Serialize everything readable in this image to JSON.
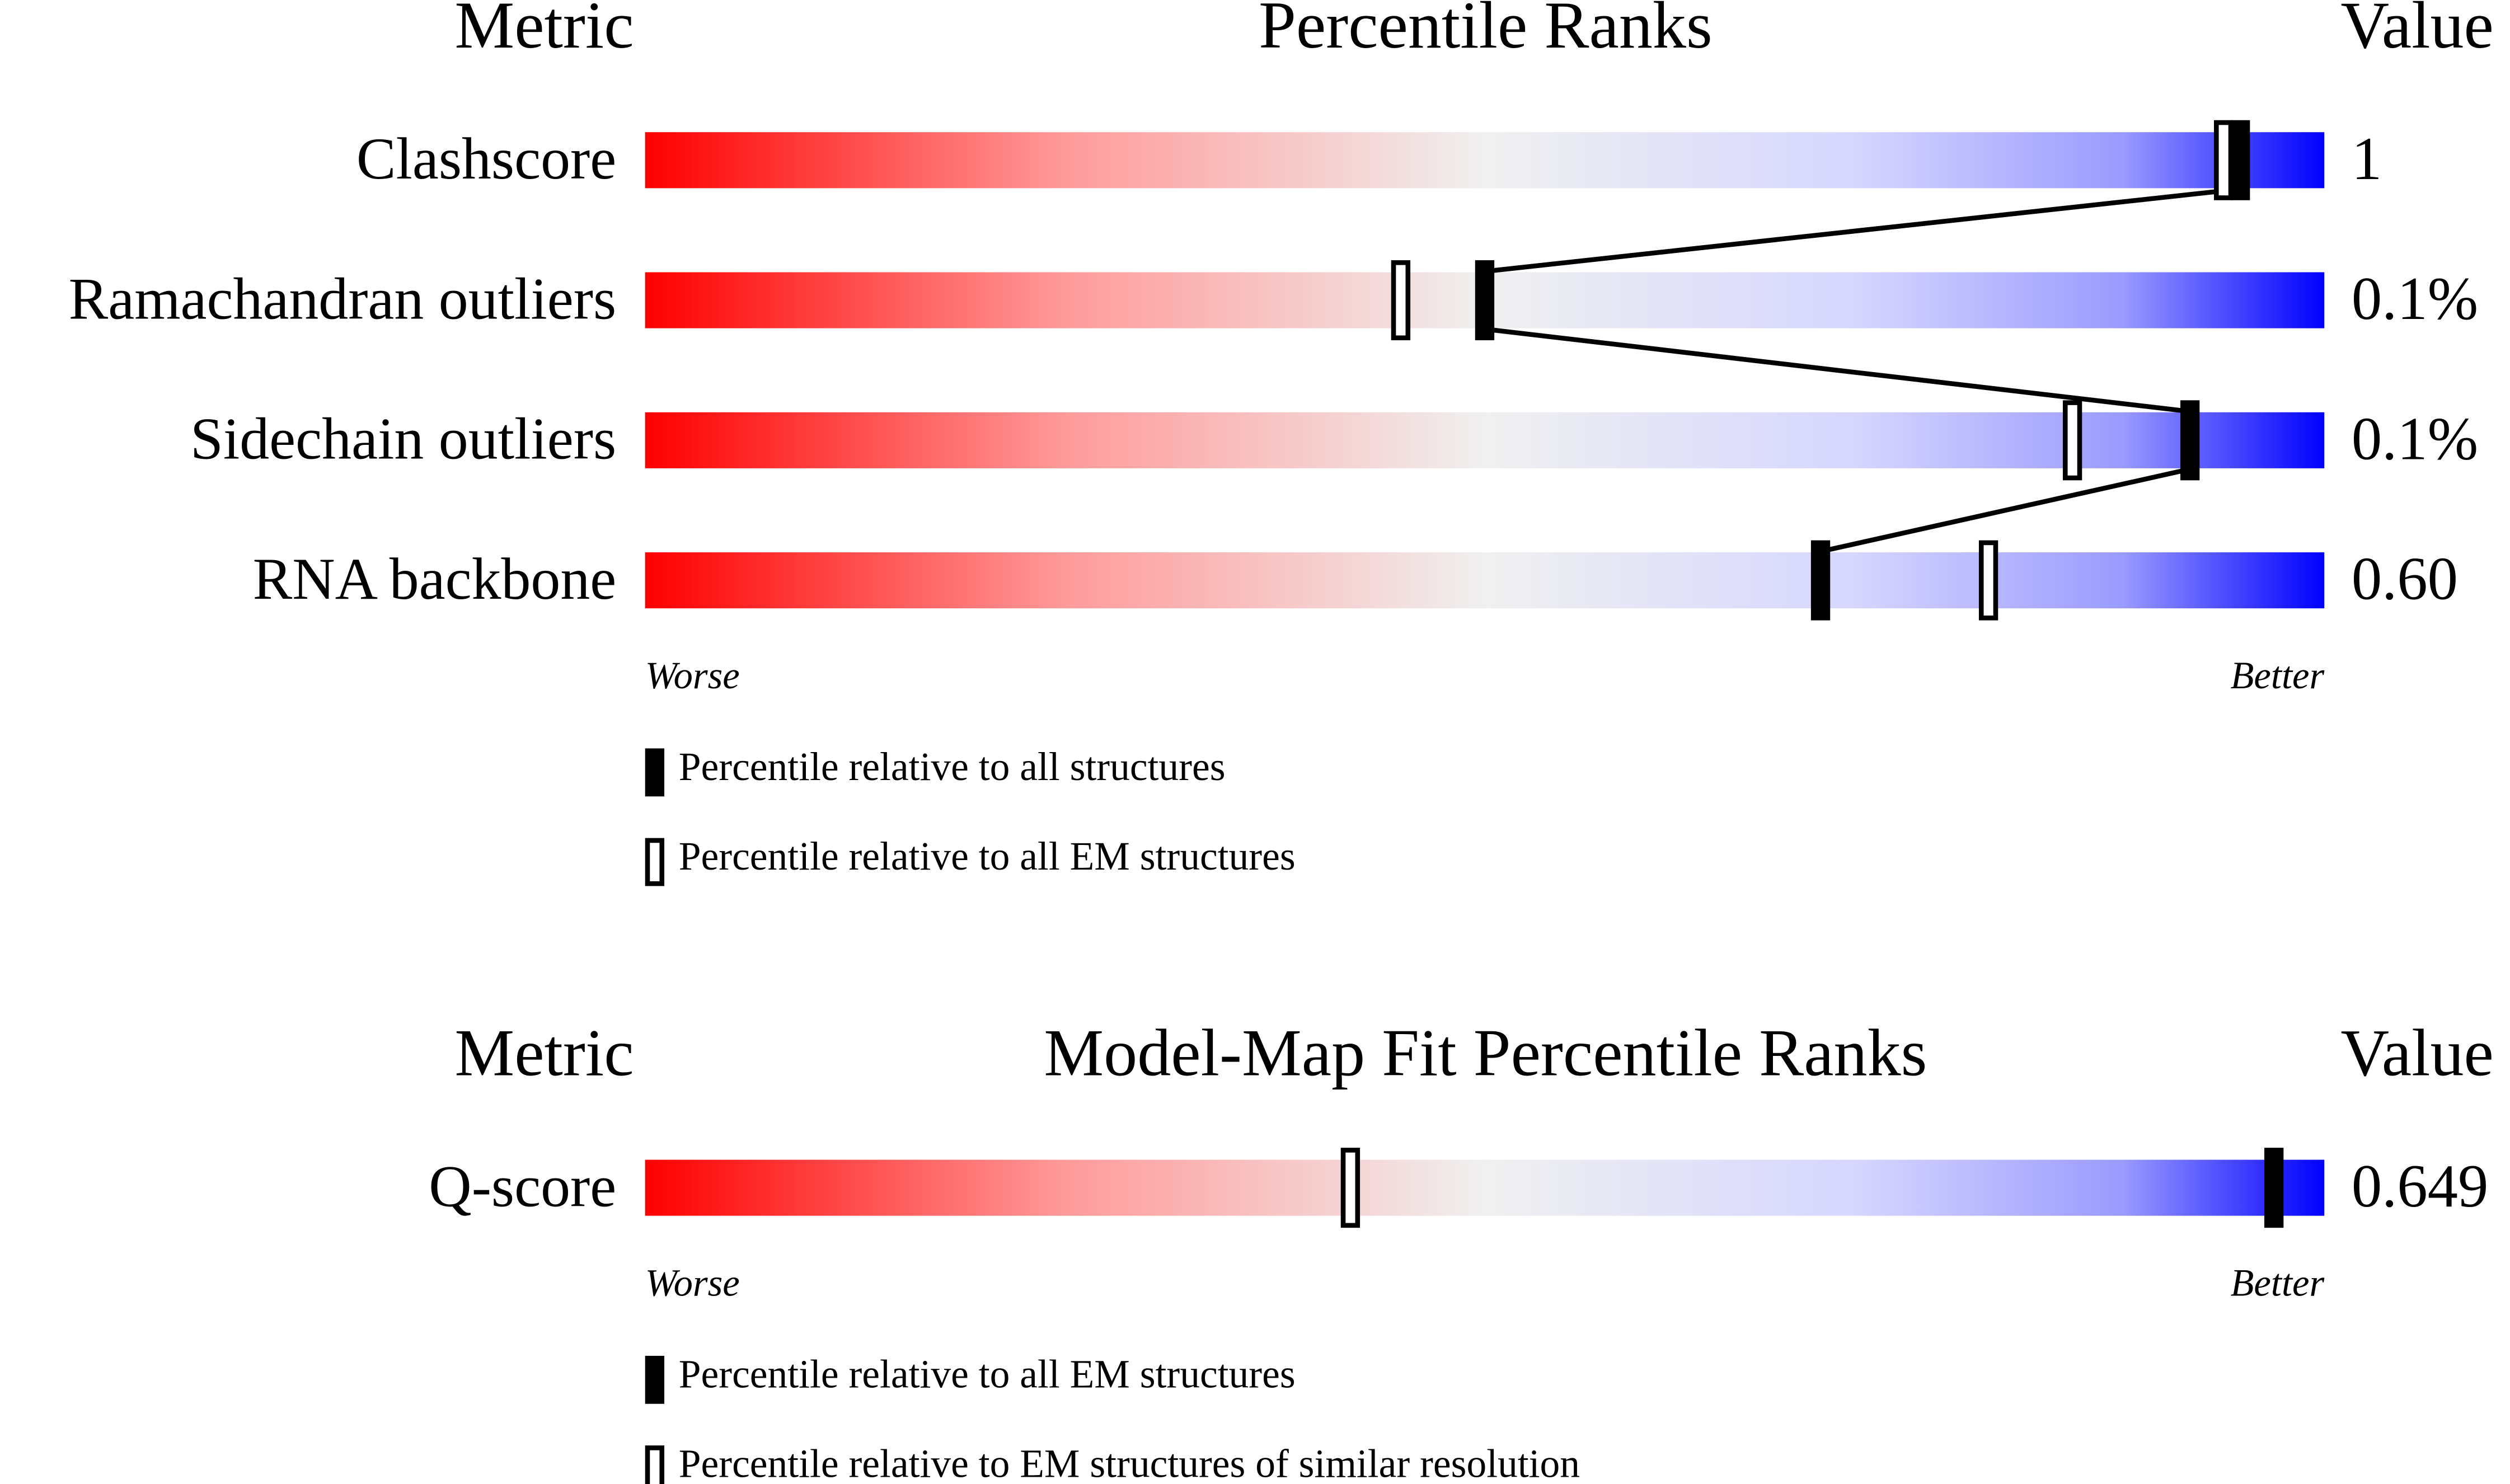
{
  "chart_data": [
    {
      "type": "percentile-slider",
      "header": {
        "metric": "Metric",
        "title": "Percentile Ranks",
        "value": "Value"
      },
      "xlim": [
        0,
        100
      ],
      "metrics": [
        {
          "name": "Clashscore",
          "value": "1",
          "percentile_all": 95,
          "percentile_em": 94
        },
        {
          "name": "Ramachandran outliers",
          "value": "0.1%",
          "percentile_all": 50,
          "percentile_em": 45
        },
        {
          "name": "Sidechain outliers",
          "value": "0.1%",
          "percentile_all": 92,
          "percentile_em": 85
        },
        {
          "name": "RNA backbone",
          "value": "0.60",
          "percentile_all": 70,
          "percentile_em": 80
        }
      ],
      "worse": "Worse",
      "better": "Better",
      "legend": {
        "filled": "Percentile relative to all structures",
        "open": "Percentile relative to all EM structures"
      }
    },
    {
      "type": "percentile-slider",
      "header": {
        "metric": "Metric",
        "title": "Model-Map Fit Percentile Ranks",
        "value": "Value"
      },
      "xlim": [
        0,
        100
      ],
      "metrics": [
        {
          "name": "Q-score",
          "value": "0.649",
          "percentile_all": 97,
          "percentile_em": 42
        }
      ],
      "worse": "Worse",
      "better": "Better",
      "legend": {
        "filled": "Percentile relative to all EM structures",
        "open": "Percentile relative to EM structures of similar resolution"
      }
    }
  ]
}
